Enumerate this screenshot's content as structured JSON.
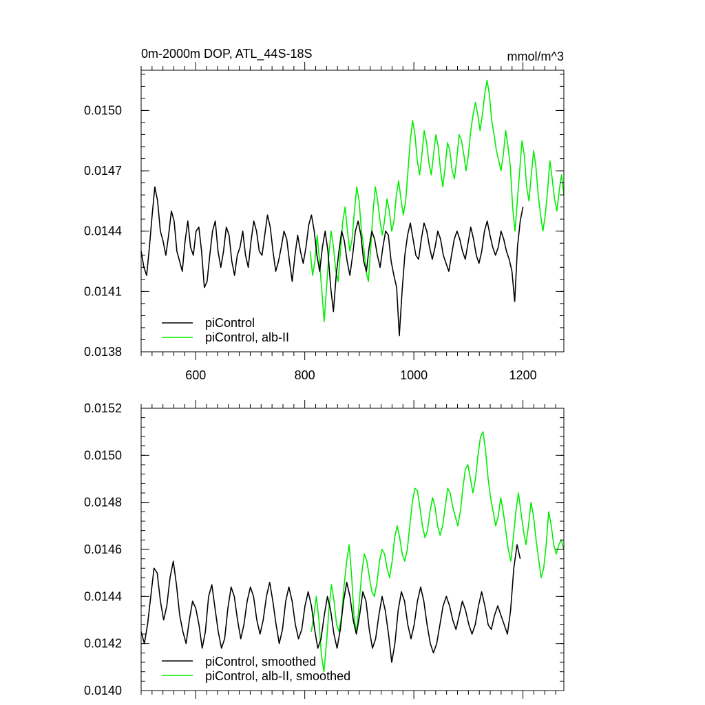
{
  "chart_data": [
    {
      "type": "line",
      "title": "0m-2000m DOP, ATL_44S-18S",
      "units": "mmol/m^3",
      "xlim": [
        500,
        1275
      ],
      "ylim": [
        0.0138,
        0.0152
      ],
      "x_ticks": [
        600,
        800,
        1000,
        1200
      ],
      "x_tick_labels": [
        "600",
        "800",
        "1000",
        "1200"
      ],
      "y_ticks": [
        0.0138,
        0.0141,
        0.0144,
        0.0147,
        0.015
      ],
      "y_tick_labels": [
        "0.0138",
        "0.0141",
        "0.0144",
        "0.0147",
        "0.0150"
      ],
      "legend_position": "bottom-left",
      "series": [
        {
          "name": "piControl",
          "color": "#000000",
          "x_start": 500,
          "x_end": 1200,
          "values": [
            0.0143,
            0.01422,
            0.01418,
            0.01432,
            0.01448,
            0.01462,
            0.01455,
            0.0144,
            0.01435,
            0.01428,
            0.01438,
            0.0145,
            0.01445,
            0.0143,
            0.01425,
            0.0142,
            0.01435,
            0.01445,
            0.01432,
            0.01428,
            0.0144,
            0.01442,
            0.0143,
            0.01412,
            0.01415,
            0.01428,
            0.0144,
            0.01445,
            0.0143,
            0.01422,
            0.0143,
            0.01442,
            0.01438,
            0.01425,
            0.01418,
            0.01428,
            0.01432,
            0.0144,
            0.01428,
            0.01422,
            0.01435,
            0.01445,
            0.0144,
            0.0143,
            0.01428,
            0.01438,
            0.01448,
            0.01442,
            0.0143,
            0.0142,
            0.01425,
            0.01432,
            0.0144,
            0.01436,
            0.01425,
            0.01415,
            0.01428,
            0.01438,
            0.0143,
            0.01424,
            0.01432,
            0.01443,
            0.01448,
            0.0144,
            0.01428,
            0.0142,
            0.01432,
            0.0144,
            0.0143,
            0.01412,
            0.014,
            0.01418,
            0.0143,
            0.0144,
            0.01435,
            0.01425,
            0.01418,
            0.01428,
            0.0144,
            0.01445,
            0.01438,
            0.01425,
            0.0142,
            0.01432,
            0.0144,
            0.01436,
            0.01428,
            0.01422,
            0.01432,
            0.0144,
            0.01438,
            0.01425,
            0.01418,
            0.01412,
            0.01388,
            0.0141,
            0.01428,
            0.01438,
            0.01444,
            0.01436,
            0.01428,
            0.01426,
            0.01436,
            0.01444,
            0.0144,
            0.01432,
            0.01426,
            0.01432,
            0.0144,
            0.01436,
            0.01428,
            0.01424,
            0.0142,
            0.01428,
            0.01436,
            0.0144,
            0.01436,
            0.0143,
            0.01426,
            0.01434,
            0.01442,
            0.01436,
            0.01428,
            0.01424,
            0.0143,
            0.0144,
            0.01445,
            0.01438,
            0.01432,
            0.01428,
            0.01432,
            0.0144,
            0.01436,
            0.0143,
            0.01426,
            0.0142,
            0.01405,
            0.01432,
            0.01445,
            0.01452
          ]
        },
        {
          "name": "piControl, alb-II",
          "color": "#00ee00",
          "x_start": 810,
          "x_end": 1275,
          "values": [
            0.0143,
            0.01418,
            0.01425,
            0.01438,
            0.01425,
            0.0141,
            0.01395,
            0.01412,
            0.01428,
            0.0144,
            0.01432,
            0.0142,
            0.01415,
            0.0143,
            0.01445,
            0.01452,
            0.0144,
            0.0143,
            0.01436,
            0.0145,
            0.01462,
            0.01455,
            0.0144,
            0.01432,
            0.0142,
            0.01415,
            0.01432,
            0.0145,
            0.01462,
            0.01455,
            0.01445,
            0.01438,
            0.01446,
            0.01456,
            0.0145,
            0.0144,
            0.01445,
            0.01458,
            0.01465,
            0.01456,
            0.01448,
            0.01455,
            0.0147,
            0.01485,
            0.01495,
            0.01488,
            0.01475,
            0.01468,
            0.01478,
            0.0149,
            0.01484,
            0.01474,
            0.01468,
            0.01478,
            0.01488,
            0.01482,
            0.0147,
            0.01462,
            0.01472,
            0.01484,
            0.0148,
            0.0147,
            0.01466,
            0.01476,
            0.01488,
            0.01485,
            0.01478,
            0.0147,
            0.01478,
            0.0149,
            0.01498,
            0.01504,
            0.01498,
            0.0149,
            0.01498,
            0.01508,
            0.01515,
            0.01508,
            0.01495,
            0.01488,
            0.0148,
            0.01475,
            0.0147,
            0.01478,
            0.0149,
            0.01482,
            0.01472,
            0.01452,
            0.0144,
            0.01455,
            0.0147,
            0.01485,
            0.01478,
            0.01462,
            0.01455,
            0.01468,
            0.0148,
            0.01472,
            0.01458,
            0.01448,
            0.0144,
            0.01448,
            0.0146,
            0.01475,
            0.01466,
            0.01456,
            0.0145,
            0.0146,
            0.01468,
            0.01458
          ]
        }
      ]
    },
    {
      "type": "line",
      "title": "",
      "xlim": [
        500,
        1275
      ],
      "ylim": [
        0.014,
        0.0152
      ],
      "x_ticks": [
        600,
        800,
        1000,
        1200
      ],
      "y_ticks": [
        0.014,
        0.0142,
        0.0144,
        0.0146,
        0.0148,
        0.015,
        0.0152
      ],
      "y_tick_labels": [
        "0.0140",
        "0.0142",
        "0.0144",
        "0.0146",
        "0.0148",
        "0.0150",
        "0.0152"
      ],
      "legend_position": "bottom-left",
      "series": [
        {
          "name": "piControl, smoothed",
          "color": "#000000",
          "x_start": 500,
          "x_end": 1195,
          "values": [
            0.01425,
            0.0142,
            0.01428,
            0.0144,
            0.01452,
            0.0145,
            0.01438,
            0.0143,
            0.01436,
            0.01448,
            0.01455,
            0.01445,
            0.01432,
            0.01425,
            0.0142,
            0.0143,
            0.01438,
            0.01435,
            0.01428,
            0.01418,
            0.01425,
            0.0144,
            0.01445,
            0.01435,
            0.01425,
            0.01418,
            0.01422,
            0.01435,
            0.01444,
            0.0144,
            0.0143,
            0.01422,
            0.01428,
            0.01438,
            0.01444,
            0.0144,
            0.0143,
            0.01424,
            0.0143,
            0.0144,
            0.01446,
            0.01438,
            0.01428,
            0.0142,
            0.01426,
            0.01438,
            0.01444,
            0.01438,
            0.01428,
            0.01422,
            0.01426,
            0.01436,
            0.01442,
            0.01436,
            0.01426,
            0.01418,
            0.01422,
            0.01432,
            0.0144,
            0.01434,
            0.01424,
            0.01418,
            0.01426,
            0.01438,
            0.01446,
            0.0144,
            0.0143,
            0.01424,
            0.01432,
            0.01442,
            0.01438,
            0.01426,
            0.01418,
            0.01422,
            0.01432,
            0.0144,
            0.01434,
            0.01424,
            0.01412,
            0.0142,
            0.01434,
            0.01442,
            0.01438,
            0.01428,
            0.01422,
            0.01428,
            0.01438,
            0.01444,
            0.01438,
            0.01428,
            0.0142,
            0.01416,
            0.0142,
            0.01428,
            0.01436,
            0.0144,
            0.01436,
            0.0143,
            0.01426,
            0.01432,
            0.01438,
            0.01434,
            0.01428,
            0.01424,
            0.01428,
            0.01436,
            0.01442,
            0.01436,
            0.01428,
            0.01426,
            0.01432,
            0.01436,
            0.01432,
            0.01428,
            0.01424,
            0.01434,
            0.01452,
            0.01462,
            0.01456
          ]
        },
        {
          "name": "piControl, alb-II, smoothed",
          "color": "#00ee00",
          "x_start": 812,
          "x_end": 1275,
          "values": [
            0.01425,
            0.01432,
            0.0144,
            0.0143,
            0.01415,
            0.01408,
            0.0142,
            0.01435,
            0.01445,
            0.01438,
            0.01428,
            0.01425,
            0.01432,
            0.01445,
            0.01455,
            0.01462,
            0.01448,
            0.0143,
            0.01425,
            0.01438,
            0.0145,
            0.01458,
            0.01455,
            0.01448,
            0.01442,
            0.0144,
            0.01446,
            0.01455,
            0.0146,
            0.01458,
            0.01452,
            0.01448,
            0.01455,
            0.01465,
            0.0147,
            0.01465,
            0.01458,
            0.01455,
            0.0146,
            0.0147,
            0.0148,
            0.01486,
            0.01485,
            0.01478,
            0.0147,
            0.01465,
            0.01468,
            0.01476,
            0.01482,
            0.01478,
            0.0147,
            0.01466,
            0.0147,
            0.01478,
            0.01486,
            0.01484,
            0.01478,
            0.01474,
            0.0147,
            0.01476,
            0.01486,
            0.01494,
            0.01496,
            0.0149,
            0.01484,
            0.0149,
            0.015,
            0.01508,
            0.0151,
            0.01502,
            0.0149,
            0.01482,
            0.01476,
            0.0147,
            0.01474,
            0.01482,
            0.01476,
            0.01468,
            0.0146,
            0.01455,
            0.01465,
            0.01476,
            0.01484,
            0.01476,
            0.01468,
            0.01462,
            0.0147,
            0.0148,
            0.01474,
            0.01464,
            0.01456,
            0.01448,
            0.01452,
            0.01462,
            0.01476,
            0.0147,
            0.01462,
            0.01458,
            0.01462,
            0.01464,
            0.0146
          ]
        }
      ]
    }
  ]
}
